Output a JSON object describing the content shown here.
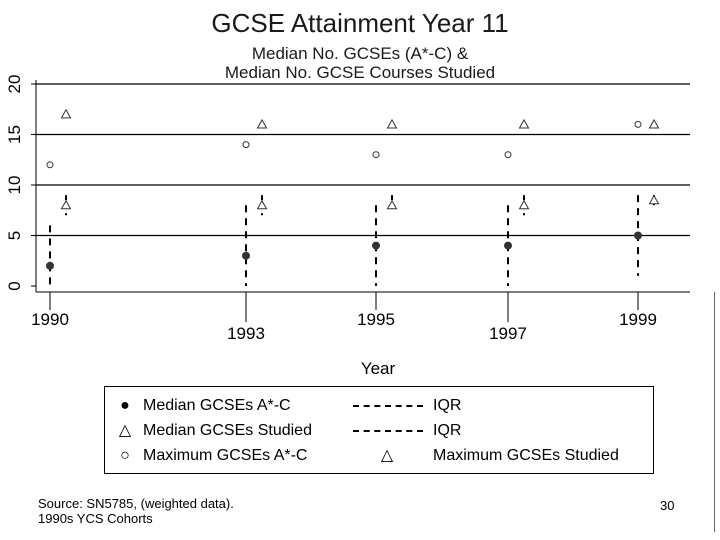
{
  "chart_data": {
    "type": "scatter",
    "title": "GCSE Attainment Year 11",
    "subtitle": [
      "Median No. GCSEs (A*-C) &",
      "Median No. GCSE Courses Studied"
    ],
    "xlabel": "Year",
    "ylabel": "",
    "ylim": [
      0,
      20
    ],
    "yticks": [
      "0",
      "5",
      "10",
      "15",
      "20"
    ],
    "x_top_labels": [
      "1990",
      "1995",
      "1999"
    ],
    "x_bottom_labels": [
      "1993",
      "1997"
    ],
    "categories": [
      "1990",
      "1993",
      "1995",
      "1997",
      "1999"
    ],
    "series": [
      {
        "name": "Median GCSEs A*-C",
        "marker": "filled-circle",
        "values": [
          2,
          3,
          4,
          4,
          5
        ]
      },
      {
        "name": "Median GCSEs Studied",
        "marker": "triangle",
        "values": [
          8,
          8,
          8,
          8,
          8.5
        ]
      },
      {
        "name": "Maximum GCSEs A*-C",
        "marker": "circle",
        "values": [
          12,
          14,
          13,
          13,
          16
        ]
      },
      {
        "name": "Maximum GCSEs Studied",
        "marker": "triangle",
        "values": [
          17,
          16,
          16,
          16,
          16
        ]
      }
    ],
    "iqr_achieved": [
      [
        0,
        6
      ],
      [
        0,
        8
      ],
      [
        0,
        8
      ],
      [
        0,
        8
      ],
      [
        1,
        9
      ]
    ],
    "iqr_studied": [
      [
        7,
        9
      ],
      [
        7,
        9
      ],
      [
        7.5,
        9
      ],
      [
        7,
        9
      ],
      [
        8,
        9
      ]
    ],
    "grid": true,
    "legend_position": "bottom",
    "legend": [
      {
        "label": "Median GCSEs A*-C",
        "symbol": "●"
      },
      {
        "label": "IQR",
        "symbol": "dash"
      },
      {
        "label": "Median GCSEs Studied",
        "symbol": "△"
      },
      {
        "label": "IQR",
        "symbol": "dash"
      },
      {
        "label": "Maximum GCSEs A*-C",
        "symbol": "○"
      },
      {
        "label": "Maximum GCSEs Studied",
        "symbol": "△"
      }
    ]
  },
  "footer": {
    "source_line1": "Source: SN5785, (weighted data).",
    "source_line2": "1990s YCS Cohorts",
    "page_number": "30"
  },
  "colors": {
    "axis": "#000000",
    "grid": "#000000",
    "marker": "#333333"
  }
}
